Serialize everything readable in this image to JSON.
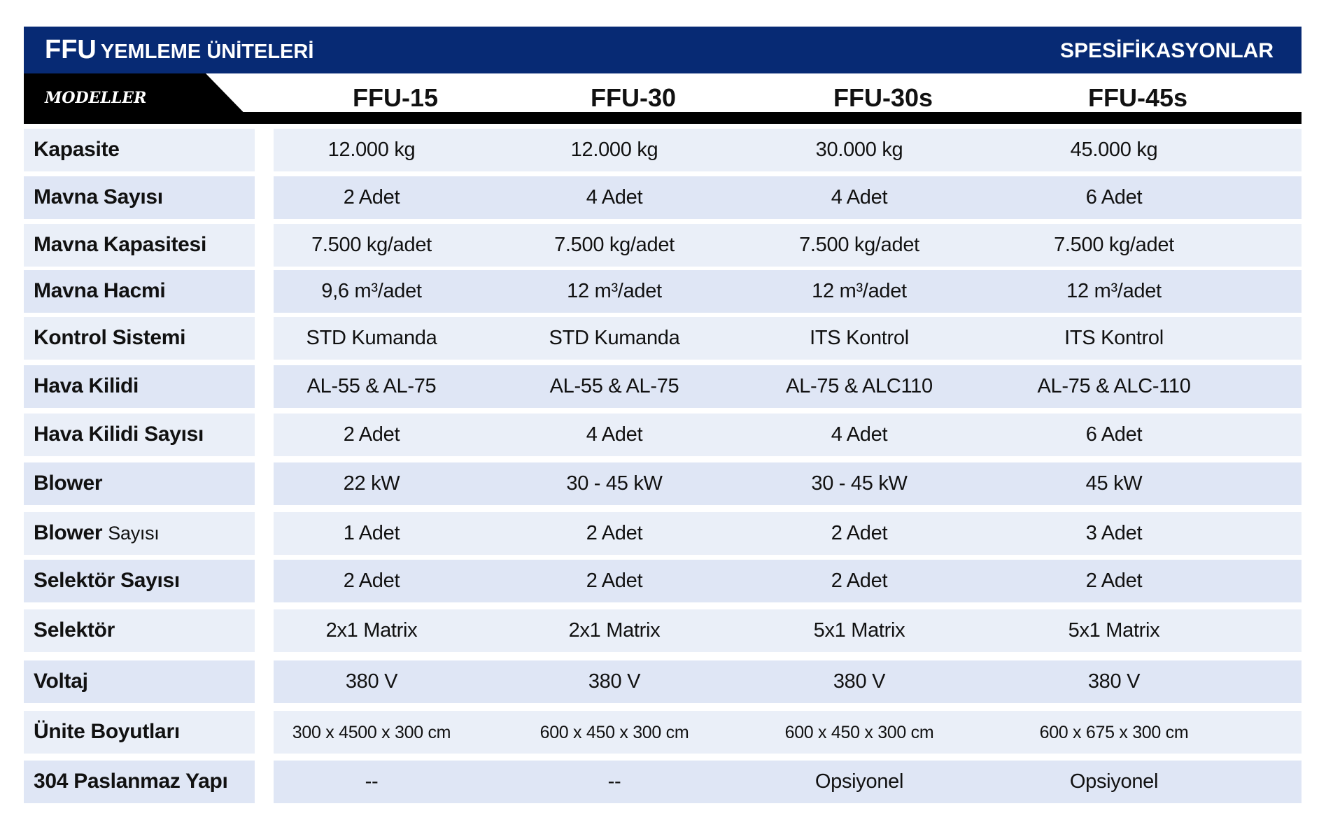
{
  "header": {
    "title_main": "FFU",
    "title_sub": "YEMLEME ÜNİTELERİ",
    "right": "SPESİFİKASYONLAR",
    "color": "#072a74"
  },
  "models_label": "MODELLER",
  "models": [
    "FFU-15",
    "FFU-30",
    "FFU-30s",
    "FFU-45s"
  ],
  "rows": [
    {
      "label": "Kapasite",
      "values": [
        "12.000 kg",
        "12.000 kg",
        "30.000 kg",
        "45.000 kg"
      ]
    },
    {
      "label": "Mavna Sayısı",
      "values": [
        "2 Adet",
        "4 Adet",
        "4 Adet",
        "6 Adet"
      ]
    },
    {
      "label": "Mavna Kapasitesi",
      "values": [
        "7.500 kg/adet",
        "7.500 kg/adet",
        "7.500 kg/adet",
        "7.500 kg/adet"
      ]
    },
    {
      "label": "Mavna Hacmi",
      "values": [
        "9,6 m³/adet",
        "12 m³/adet",
        "12 m³/adet",
        "12 m³/adet"
      ]
    },
    {
      "label": "Kontrol Sistemi",
      "values": [
        "STD Kumanda",
        "STD Kumanda",
        "ITS Kontrol",
        "ITS Kontrol"
      ]
    },
    {
      "label": "Hava Kilidi",
      "values": [
        "AL-55 & AL-75",
        "AL-55 & AL-75",
        "AL-75 & ALC110",
        "AL-75 & ALC-110"
      ]
    },
    {
      "label": "Hava Kilidi Sayısı",
      "values": [
        "2 Adet",
        "4 Adet",
        "4 Adet",
        "6 Adet"
      ]
    },
    {
      "label": "Blower",
      "values": [
        "22 kW",
        "30 - 45 kW",
        "30 - 45 kW",
        "45 kW"
      ]
    },
    {
      "label": "Blower",
      "label_suffix": "Sayısı",
      "values": [
        "1 Adet",
        "2 Adet",
        "2 Adet",
        "3 Adet"
      ]
    },
    {
      "label": "Selektör Sayısı",
      "values": [
        "2 Adet",
        "2 Adet",
        "2 Adet",
        "2 Adet"
      ]
    },
    {
      "label": "Selektör",
      "values": [
        "2x1 Matrix",
        "2x1 Matrix",
        "5x1 Matrix",
        "5x1 Matrix"
      ]
    },
    {
      "label": "Voltaj",
      "values": [
        "380 V",
        "380 V",
        "380 V",
        "380 V"
      ]
    },
    {
      "label": "Ünite Boyutları",
      "values": [
        "300 x 4500 x 300 cm",
        "600 x 450 x 300 cm",
        "600 x 450 x 300 cm",
        "600 x 675 x 300 cm"
      ]
    },
    {
      "label": "304 Paslanmaz Yapı",
      "values": [
        "--",
        "--",
        "Opsiyonel",
        "Opsiyonel"
      ]
    }
  ]
}
